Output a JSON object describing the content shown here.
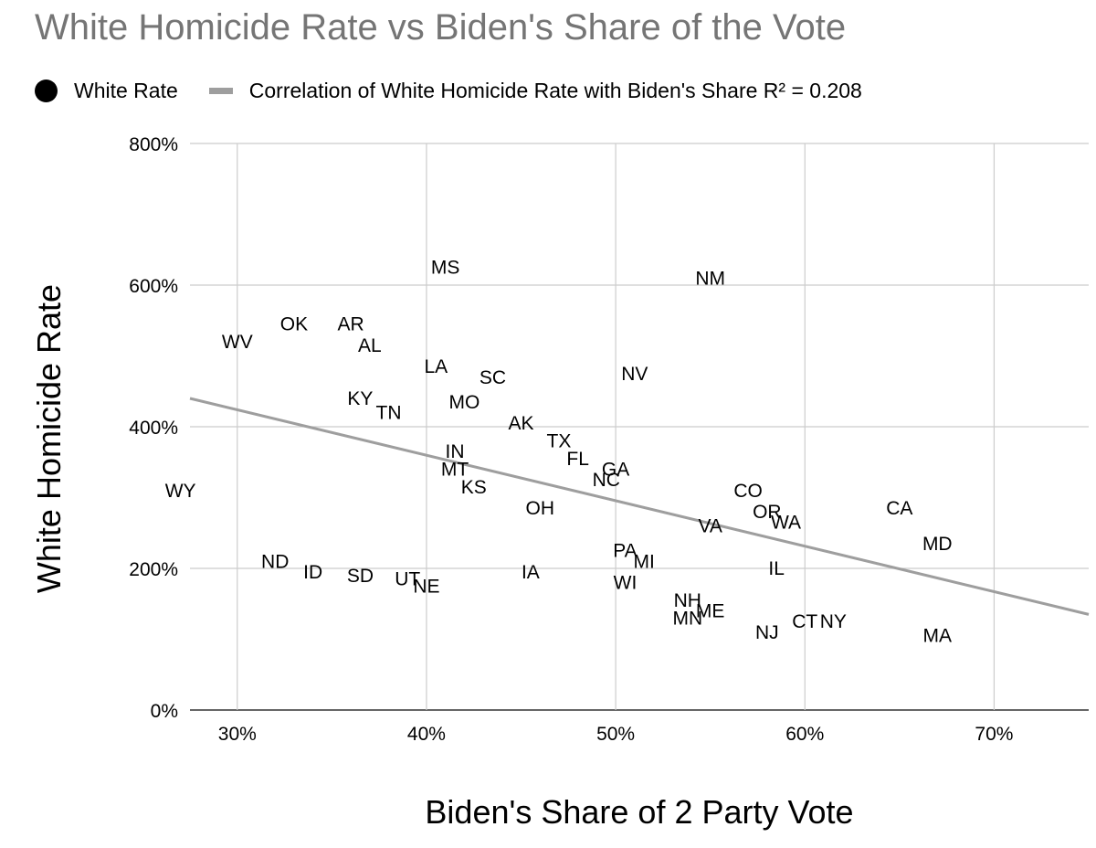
{
  "chart_data": {
    "type": "scatter",
    "title": "White Homicide Rate vs Biden's Share of the Vote",
    "xlabel": "Biden's Share of 2 Party Vote",
    "ylabel": "White Homicide Rate",
    "xlim": [
      27.5,
      75
    ],
    "ylim": [
      0,
      800
    ],
    "x_ticks": [
      30,
      40,
      50,
      60,
      70
    ],
    "x_tick_labels": [
      "30%",
      "40%",
      "50%",
      "60%",
      "70%"
    ],
    "y_ticks": [
      0,
      200,
      400,
      600,
      800
    ],
    "y_tick_labels": [
      "0%",
      "200%",
      "400%",
      "600%",
      "800%"
    ],
    "grid": true,
    "legend_position": "top-left",
    "legend": {
      "points_label": "White Rate",
      "trend_label": "Correlation of White Homicide Rate with Biden's Share R² = 0.208"
    },
    "colors": {
      "title": "#757575",
      "points": "#000000",
      "trendline": "#9e9e9e",
      "grid": "#cccccc"
    },
    "trendline": {
      "x": [
        27.5,
        75
      ],
      "y": [
        440,
        135
      ]
    },
    "series": [
      {
        "name": "White Rate",
        "points": [
          {
            "label": "WV",
            "x": 30.0,
            "y": 520
          },
          {
            "label": "OK",
            "x": 33.0,
            "y": 545
          },
          {
            "label": "AR",
            "x": 36.0,
            "y": 545
          },
          {
            "label": "AL",
            "x": 37.0,
            "y": 515
          },
          {
            "label": "WY",
            "x": 27.0,
            "y": 310
          },
          {
            "label": "KY",
            "x": 36.5,
            "y": 440
          },
          {
            "label": "TN",
            "x": 38.0,
            "y": 420
          },
          {
            "label": "MS",
            "x": 41.0,
            "y": 625
          },
          {
            "label": "LA",
            "x": 40.5,
            "y": 485
          },
          {
            "label": "MO",
            "x": 42.0,
            "y": 435
          },
          {
            "label": "SC",
            "x": 43.5,
            "y": 470
          },
          {
            "label": "AK",
            "x": 45.0,
            "y": 405
          },
          {
            "label": "IN",
            "x": 41.5,
            "y": 365
          },
          {
            "label": "MT",
            "x": 41.5,
            "y": 340
          },
          {
            "label": "KS",
            "x": 42.5,
            "y": 315
          },
          {
            "label": "TX",
            "x": 47.0,
            "y": 380
          },
          {
            "label": "FL",
            "x": 48.0,
            "y": 355
          },
          {
            "label": "GA",
            "x": 50.0,
            "y": 340
          },
          {
            "label": "NC",
            "x": 49.5,
            "y": 325
          },
          {
            "label": "OH",
            "x": 46.0,
            "y": 285
          },
          {
            "label": "NV",
            "x": 51.0,
            "y": 475
          },
          {
            "label": "NM",
            "x": 55.0,
            "y": 610
          },
          {
            "label": "CO",
            "x": 57.0,
            "y": 310
          },
          {
            "label": "OR",
            "x": 58.0,
            "y": 280
          },
          {
            "label": "WA",
            "x": 59.0,
            "y": 265
          },
          {
            "label": "VA",
            "x": 55.0,
            "y": 260
          },
          {
            "label": "CA",
            "x": 65.0,
            "y": 285
          },
          {
            "label": "MD",
            "x": 67.0,
            "y": 235
          },
          {
            "label": "ND",
            "x": 32.0,
            "y": 210
          },
          {
            "label": "ID",
            "x": 34.0,
            "y": 195
          },
          {
            "label": "SD",
            "x": 36.5,
            "y": 190
          },
          {
            "label": "UT",
            "x": 39.0,
            "y": 185
          },
          {
            "label": "NE",
            "x": 40.0,
            "y": 175
          },
          {
            "label": "IA",
            "x": 45.5,
            "y": 195
          },
          {
            "label": "PA",
            "x": 50.5,
            "y": 225
          },
          {
            "label": "MI",
            "x": 51.5,
            "y": 210
          },
          {
            "label": "WI",
            "x": 50.5,
            "y": 180
          },
          {
            "label": "IL",
            "x": 58.5,
            "y": 200
          },
          {
            "label": "NH",
            "x": 53.8,
            "y": 155
          },
          {
            "label": "MN",
            "x": 53.8,
            "y": 130
          },
          {
            "label": "ME",
            "x": 55.0,
            "y": 140
          },
          {
            "label": "NJ",
            "x": 58.0,
            "y": 110
          },
          {
            "label": "CT",
            "x": 60.0,
            "y": 125
          },
          {
            "label": "NY",
            "x": 61.5,
            "y": 125
          },
          {
            "label": "MA",
            "x": 67.0,
            "y": 105
          }
        ]
      }
    ]
  }
}
